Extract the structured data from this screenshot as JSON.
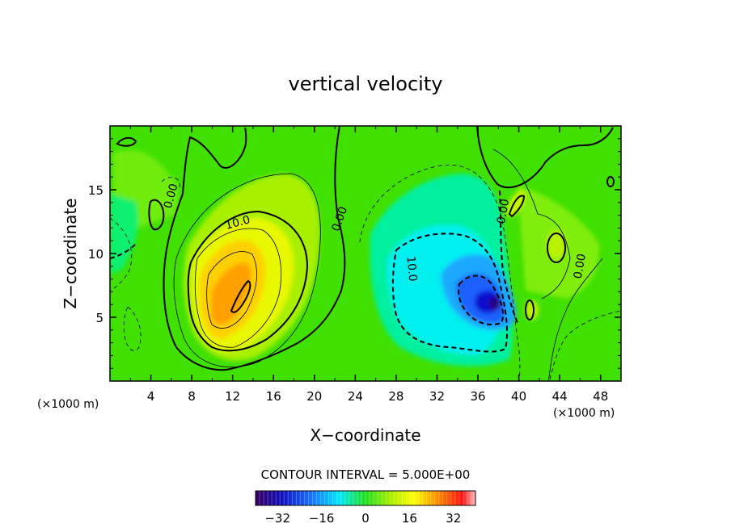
{
  "chart_data": {
    "type": "heatmap",
    "title": "vertical velocity",
    "xlabel": "X−coordinate",
    "ylabel": "Z−coordinate",
    "x_unit_left": "(×1000 m)",
    "x_unit_right": "(×1000 m)",
    "xlim": [
      0,
      50
    ],
    "ylim": [
      0,
      20
    ],
    "x_ticks": [
      "4",
      "8",
      "12",
      "16",
      "20",
      "24",
      "28",
      "32",
      "36",
      "40",
      "44",
      "48"
    ],
    "y_ticks": [
      "5",
      "10",
      "15"
    ],
    "contour_interval_text": "CONTOUR INTERVAL = 5.000E+00",
    "colorbar": {
      "range": [
        -40,
        40
      ],
      "tick_labels": [
        "−32",
        "−16",
        "0",
        "16",
        "32"
      ],
      "tick_values": [
        -32,
        -16,
        0,
        16,
        32
      ]
    },
    "contour_labels": [
      {
        "text": "0.00",
        "x": 6,
        "z": 14.5,
        "angle": -75
      },
      {
        "text": "10.0",
        "x": 12.5,
        "z": 12.4,
        "angle": -15
      },
      {
        "text": "0.00",
        "x": 22.5,
        "z": 12.7,
        "angle": -70
      },
      {
        "text": "10.0",
        "x": 29.5,
        "z": 8.8,
        "angle": 85
      },
      {
        "text": "0.00",
        "x": 38.5,
        "z": 13.3,
        "angle": -80
      },
      {
        "text": "0.00",
        "x": 46,
        "z": 9,
        "angle": -80
      }
    ],
    "field_features": [
      {
        "kind": "updraft",
        "x": 12.5,
        "z": 6.8,
        "peak": 26
      },
      {
        "kind": "downdraft",
        "x": 37,
        "z": 6.2,
        "peak": -30
      },
      {
        "kind": "updraft",
        "x": 40.3,
        "z": 12.5,
        "peak": 9
      },
      {
        "kind": "updraft",
        "x": 43.3,
        "z": 10.5,
        "peak": 8
      },
      {
        "kind": "downdraft",
        "x": 0.5,
        "z": 10,
        "peak": -5
      }
    ]
  }
}
